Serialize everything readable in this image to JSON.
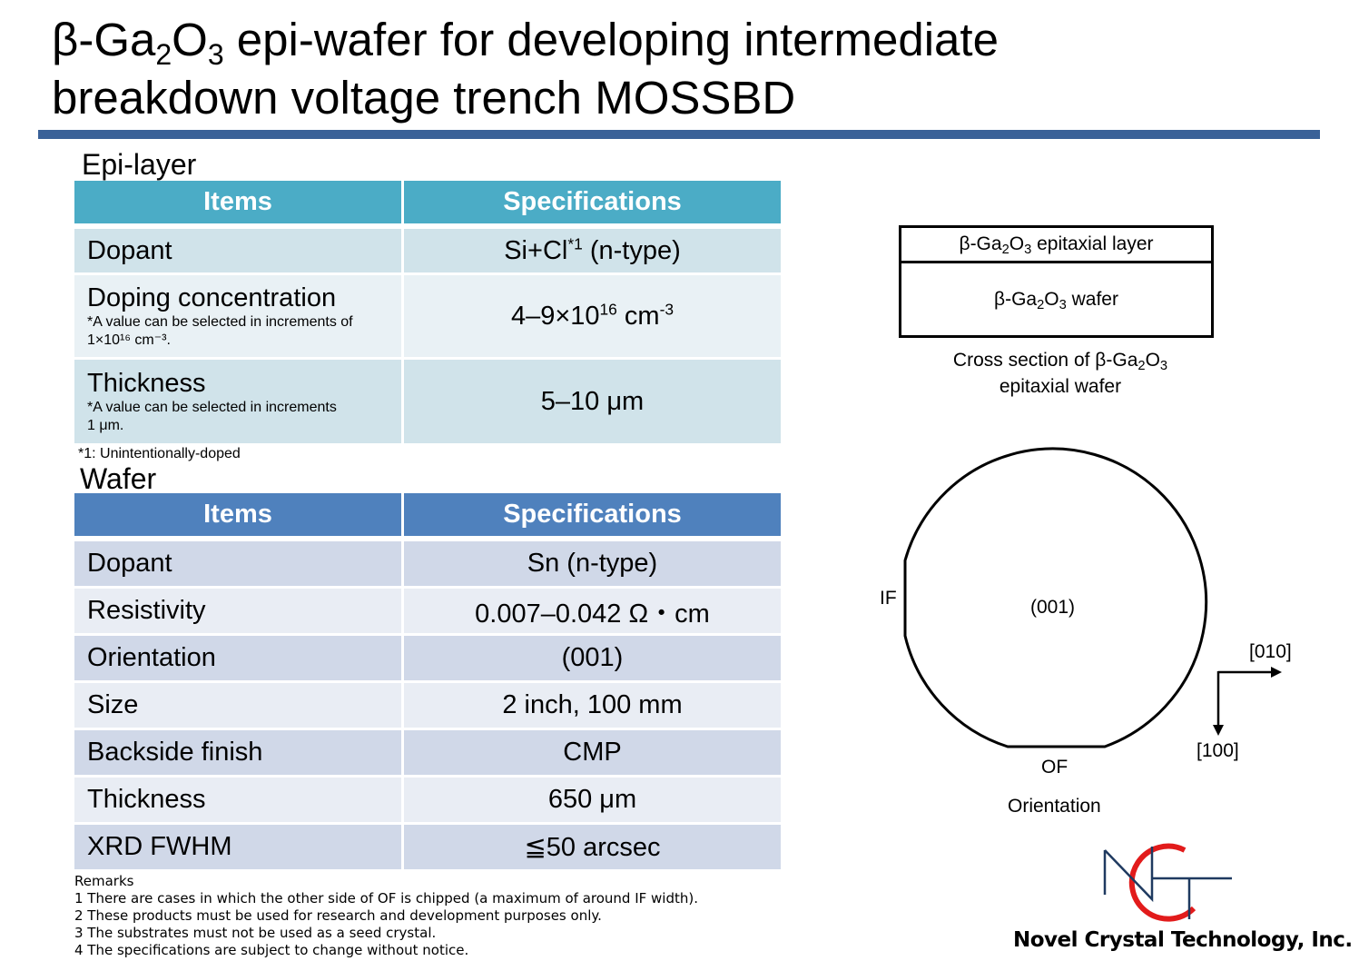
{
  "title": {
    "p1": "β-Ga",
    "s1": "2",
    "p2": "O",
    "s2": "3",
    "p3": " epi-wafer for developing intermediate",
    "line2": "breakdown voltage trench MOSSBD"
  },
  "colors": {
    "title_rule": "#3a6198",
    "epi_header": "#4bacc6",
    "epi_row_dark": "#d0e3ea",
    "epi_row_light": "#e9f1f5",
    "wafer_header": "#4f81bd",
    "wafer_row_dark": "#d0d8e8",
    "wafer_row_light": "#e9edf4"
  },
  "epi": {
    "heading": "Epi-layer",
    "col_items": "Items",
    "col_specs": "Specifications",
    "dopant": {
      "item": "Dopant",
      "spec": "Si+Cl",
      "spec_sup": "*1",
      "spec_tail": " (n-type)"
    },
    "doping": {
      "item": "Doping concentration",
      "note1": "*A value can be selected in increments of",
      "note2": "1×10¹⁶ cm⁻³.",
      "spec": "4–9×10",
      "spec_sup": "16",
      "spec_mid": " cm",
      "spec_sup2": "-3"
    },
    "thickness": {
      "item": "Thickness",
      "note1": "*A value can be selected in increments",
      "note2": "1 μm.",
      "spec": "5–10 μm"
    },
    "footnote": "*1: Unintentionally-doped"
  },
  "wafer": {
    "heading": "Wafer",
    "col_items": "Items",
    "col_specs": "Specifications",
    "rows": [
      {
        "item": "Dopant",
        "spec": "Sn (n-type)"
      },
      {
        "item": "Resistivity",
        "spec": "0.007–0.042 Ω・cm"
      },
      {
        "item": "Orientation",
        "spec": "(001)"
      },
      {
        "item": "Size",
        "spec": "2 inch, 100 mm"
      },
      {
        "item": "Backside finish",
        "spec": "CMP"
      },
      {
        "item": "Thickness",
        "spec": "650 μm"
      },
      {
        "item": "XRD FWHM",
        "spec": "≦50 arcsec"
      }
    ]
  },
  "remarks": {
    "heading": "Remarks",
    "lines": [
      "1 There are cases in which the other side of OF is chipped (a maximum of around IF width).",
      "2 These products must be used for research and development purposes only.",
      "3 The substrates must not be used as a seed crystal.",
      "4 The specifications are subject to change without notice."
    ]
  },
  "cross_section": {
    "layer_pre": "β-Ga",
    "layer_s1": "2",
    "layer_mid": "O",
    "layer_s2": "3",
    "layer_post": " epitaxial layer",
    "wafer_post": " wafer",
    "caption1_pre": "Cross section of β-Ga",
    "caption2": "epitaxial wafer"
  },
  "orientation_diagram": {
    "if_label": "IF",
    "of_label": "OF",
    "face": "(001)",
    "axis_x": "[010]",
    "axis_y": "[100]",
    "caption": "Orientation"
  },
  "logo": {
    "company": "Novel Crystal Technology, Inc."
  }
}
